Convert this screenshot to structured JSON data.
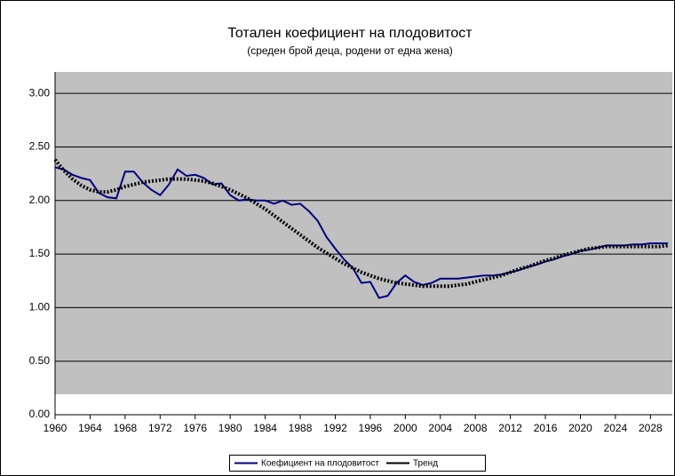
{
  "chart_data": {
    "type": "line",
    "title": "Тотален коефициент на плодовитост",
    "subtitle": "(среден брой деца, родени от една жена)",
    "x": [
      1960,
      1961,
      1962,
      1963,
      1964,
      1965,
      1966,
      1967,
      1968,
      1969,
      1970,
      1971,
      1972,
      1973,
      1974,
      1975,
      1976,
      1977,
      1978,
      1979,
      1980,
      1981,
      1982,
      1983,
      1984,
      1985,
      1986,
      1987,
      1988,
      1989,
      1990,
      1991,
      1992,
      1993,
      1994,
      1995,
      1996,
      1997,
      1998,
      1999,
      2000,
      2001,
      2002,
      2003,
      2004,
      2005,
      2006,
      2007,
      2008,
      2009,
      2010,
      2011,
      2012,
      2013,
      2014,
      2015,
      2016,
      2017,
      2018,
      2019,
      2020,
      2021,
      2022,
      2023,
      2024,
      2025,
      2026,
      2027,
      2028,
      2029,
      2030
    ],
    "series": [
      {
        "name": "Коефициент на плодовитост",
        "color": "#000080",
        "style": "solid",
        "values": [
          2.31,
          2.29,
          2.24,
          2.21,
          2.19,
          2.07,
          2.03,
          2.02,
          2.27,
          2.27,
          2.17,
          2.1,
          2.05,
          2.15,
          2.29,
          2.23,
          2.24,
          2.21,
          2.15,
          2.16,
          2.05,
          2.0,
          2.01,
          2.0,
          2.0,
          1.97,
          2.0,
          1.96,
          1.97,
          1.9,
          1.81,
          1.66,
          1.55,
          1.45,
          1.37,
          1.23,
          1.24,
          1.09,
          1.11,
          1.23,
          1.3,
          1.24,
          1.21,
          1.23,
          1.27,
          1.27,
          1.27,
          1.28,
          1.29,
          1.3,
          1.3,
          1.31,
          1.33,
          1.35,
          1.38,
          1.4,
          1.43,
          1.45,
          1.48,
          1.5,
          1.53,
          1.54,
          1.56,
          1.58,
          1.58,
          1.58,
          1.59,
          1.59,
          1.6,
          1.6,
          1.6
        ]
      },
      {
        "name": "Тренд",
        "color": "#000000",
        "style": "dotted",
        "values": [
          2.38,
          2.28,
          2.2,
          2.14,
          2.1,
          2.08,
          2.08,
          2.1,
          2.13,
          2.15,
          2.17,
          2.18,
          2.19,
          2.2,
          2.2,
          2.2,
          2.19,
          2.18,
          2.16,
          2.13,
          2.1,
          2.06,
          2.02,
          1.97,
          1.92,
          1.86,
          1.8,
          1.74,
          1.68,
          1.62,
          1.56,
          1.51,
          1.46,
          1.41,
          1.37,
          1.33,
          1.3,
          1.27,
          1.25,
          1.23,
          1.22,
          1.21,
          1.2,
          1.2,
          1.2,
          1.2,
          1.21,
          1.22,
          1.24,
          1.26,
          1.28,
          1.3,
          1.33,
          1.36,
          1.38,
          1.41,
          1.44,
          1.46,
          1.49,
          1.51,
          1.53,
          1.55,
          1.56,
          1.57,
          1.57,
          1.57,
          1.57,
          1.57,
          1.57,
          1.57,
          1.58
        ]
      }
    ],
    "xlim": [
      1960,
      2030.5
    ],
    "xticks": [
      1960,
      1964,
      1968,
      1972,
      1976,
      1980,
      1984,
      1988,
      1992,
      1996,
      2000,
      2004,
      2008,
      2012,
      2016,
      2020,
      2024,
      2028
    ],
    "ylim": [
      0,
      3.2
    ],
    "yticks": [
      {
        "value": 0,
        "label": "0.00"
      },
      {
        "value": 0.5,
        "label": "0.50"
      },
      {
        "value": 1,
        "label": "1.00"
      },
      {
        "value": 1.5,
        "label": "1.50"
      },
      {
        "value": 2,
        "label": "2.00"
      },
      {
        "value": 2.5,
        "label": "2.50"
      },
      {
        "value": 3,
        "label": "3.00"
      }
    ],
    "grid": true,
    "legend": "bottom"
  }
}
